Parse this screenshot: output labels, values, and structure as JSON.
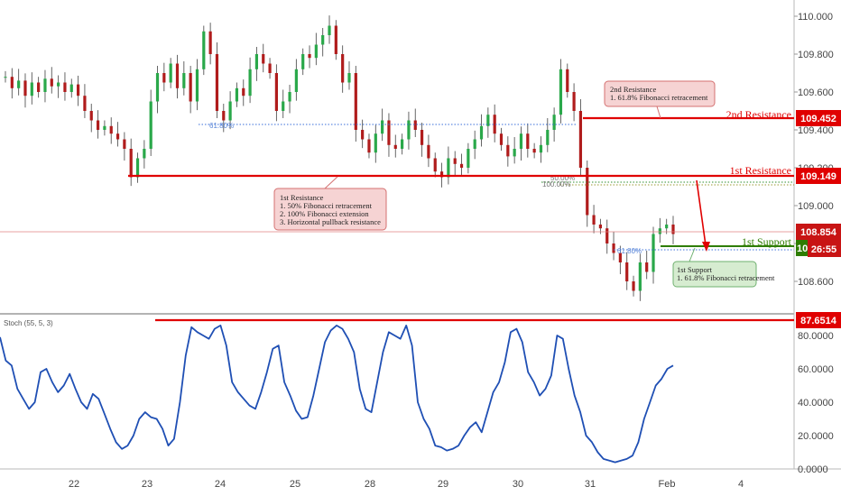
{
  "chart_data": [
    {
      "type": "candlestick",
      "title": "",
      "x_ticks": [
        "22",
        "23",
        "24",
        "25",
        "28",
        "29",
        "30",
        "31",
        "Feb",
        "4"
      ],
      "y_ticks": [
        "110.000",
        "109.800",
        "109.600",
        "109.400",
        "109.200",
        "109.000",
        "108.800",
        "108.600"
      ],
      "ylim": [
        108.47,
        110.08
      ],
      "grid": false,
      "last_price": "108.854",
      "countdown": "26:55",
      "countdown_price_prefix": "10",
      "levels": [
        {
          "label": "2nd Resistance",
          "value_label": "109.452",
          "value": 109.452,
          "color": "#e00000"
        },
        {
          "label": "1st Resistance",
          "value_label": "109.149",
          "value": 109.149,
          "color": "#e00000"
        },
        {
          "label": "1st Support",
          "value_label": "",
          "value": 108.83,
          "color": "#2e7d00"
        }
      ],
      "fib_labels": [
        "61.80%",
        "50.00%",
        "100.00%",
        "61.80%"
      ],
      "annotations": [
        {
          "id": "res2",
          "lines": [
            "2nd Resistance",
            "1. 61.8% Fibonacci retracement"
          ]
        },
        {
          "id": "res1",
          "lines": [
            "1st Resistance",
            "1. 50% Fibonacci retracement",
            "2. 100% Fibonacci extension",
            "3. Horizontal pullback resistance"
          ]
        },
        {
          "id": "sup1",
          "lines": [
            "1st Support",
            "1. 61.8% Fibonacci retracement"
          ]
        }
      ],
      "price_series_approx": [
        109.68,
        109.62,
        109.66,
        109.58,
        109.65,
        109.6,
        109.67,
        109.63,
        109.65,
        109.6,
        109.64,
        109.58,
        109.5,
        109.45,
        109.4,
        109.42,
        109.38,
        109.35,
        109.3,
        109.15,
        109.25,
        109.3,
        109.55,
        109.7,
        109.65,
        109.75,
        109.62,
        109.7,
        109.55,
        109.72,
        109.92,
        109.8,
        109.5,
        109.45,
        109.55,
        109.62,
        109.58,
        109.72,
        109.8,
        109.75,
        109.7,
        109.5,
        109.55,
        109.6,
        109.72,
        109.8,
        109.78,
        109.85,
        109.9,
        109.95,
        109.8,
        109.65,
        109.7,
        109.4,
        109.35,
        109.28,
        109.38,
        109.45,
        109.32,
        109.3,
        109.35,
        109.45,
        109.4,
        109.32,
        109.25,
        109.18,
        109.15,
        109.25,
        109.22,
        109.2,
        109.3,
        109.35,
        109.42,
        109.48,
        109.38,
        109.32,
        109.26,
        109.3,
        109.38,
        109.3,
        109.28,
        109.32,
        109.4,
        109.48,
        109.72,
        109.6,
        109.5,
        109.2,
        108.95,
        108.9,
        108.88,
        108.8,
        108.75,
        108.7,
        108.6,
        108.55,
        108.7,
        108.65,
        108.85,
        108.88,
        108.9,
        108.85
      ]
    },
    {
      "type": "line",
      "title": "Stoch (55, 5, 3)",
      "y_ticks": [
        "80.0000",
        "60.0000",
        "40.0000",
        "20.0000",
        "0.0000"
      ],
      "ylim": [
        -1,
        98
      ],
      "level_value": 87.6514,
      "level_label": "87.6514",
      "series": [
        {
          "values": [
            79,
            65,
            62,
            48,
            42,
            36,
            40,
            58,
            60,
            52,
            46,
            50,
            57,
            48,
            40,
            36,
            45,
            42,
            33,
            24,
            16,
            12,
            14,
            20,
            30,
            34,
            31,
            30,
            24,
            14,
            18,
            40,
            68,
            85,
            82,
            80,
            78,
            84,
            86,
            74,
            52,
            46,
            42,
            38,
            36,
            46,
            58,
            72,
            74,
            52,
            44,
            35,
            30,
            31,
            44,
            60,
            76,
            83,
            86,
            84,
            78,
            70,
            48,
            36,
            34,
            52,
            70,
            82,
            80,
            78,
            86,
            74,
            40,
            30,
            24,
            14,
            13,
            11,
            12,
            14,
            20,
            25,
            28,
            22,
            34,
            46,
            52,
            64,
            82,
            84,
            76,
            58,
            52,
            44,
            48,
            56,
            80,
            78,
            60,
            44,
            34,
            20,
            16,
            10,
            6,
            5,
            4,
            5,
            6,
            8,
            16,
            30,
            40,
            50,
            54,
            60,
            62
          ]
        }
      ]
    }
  ]
}
